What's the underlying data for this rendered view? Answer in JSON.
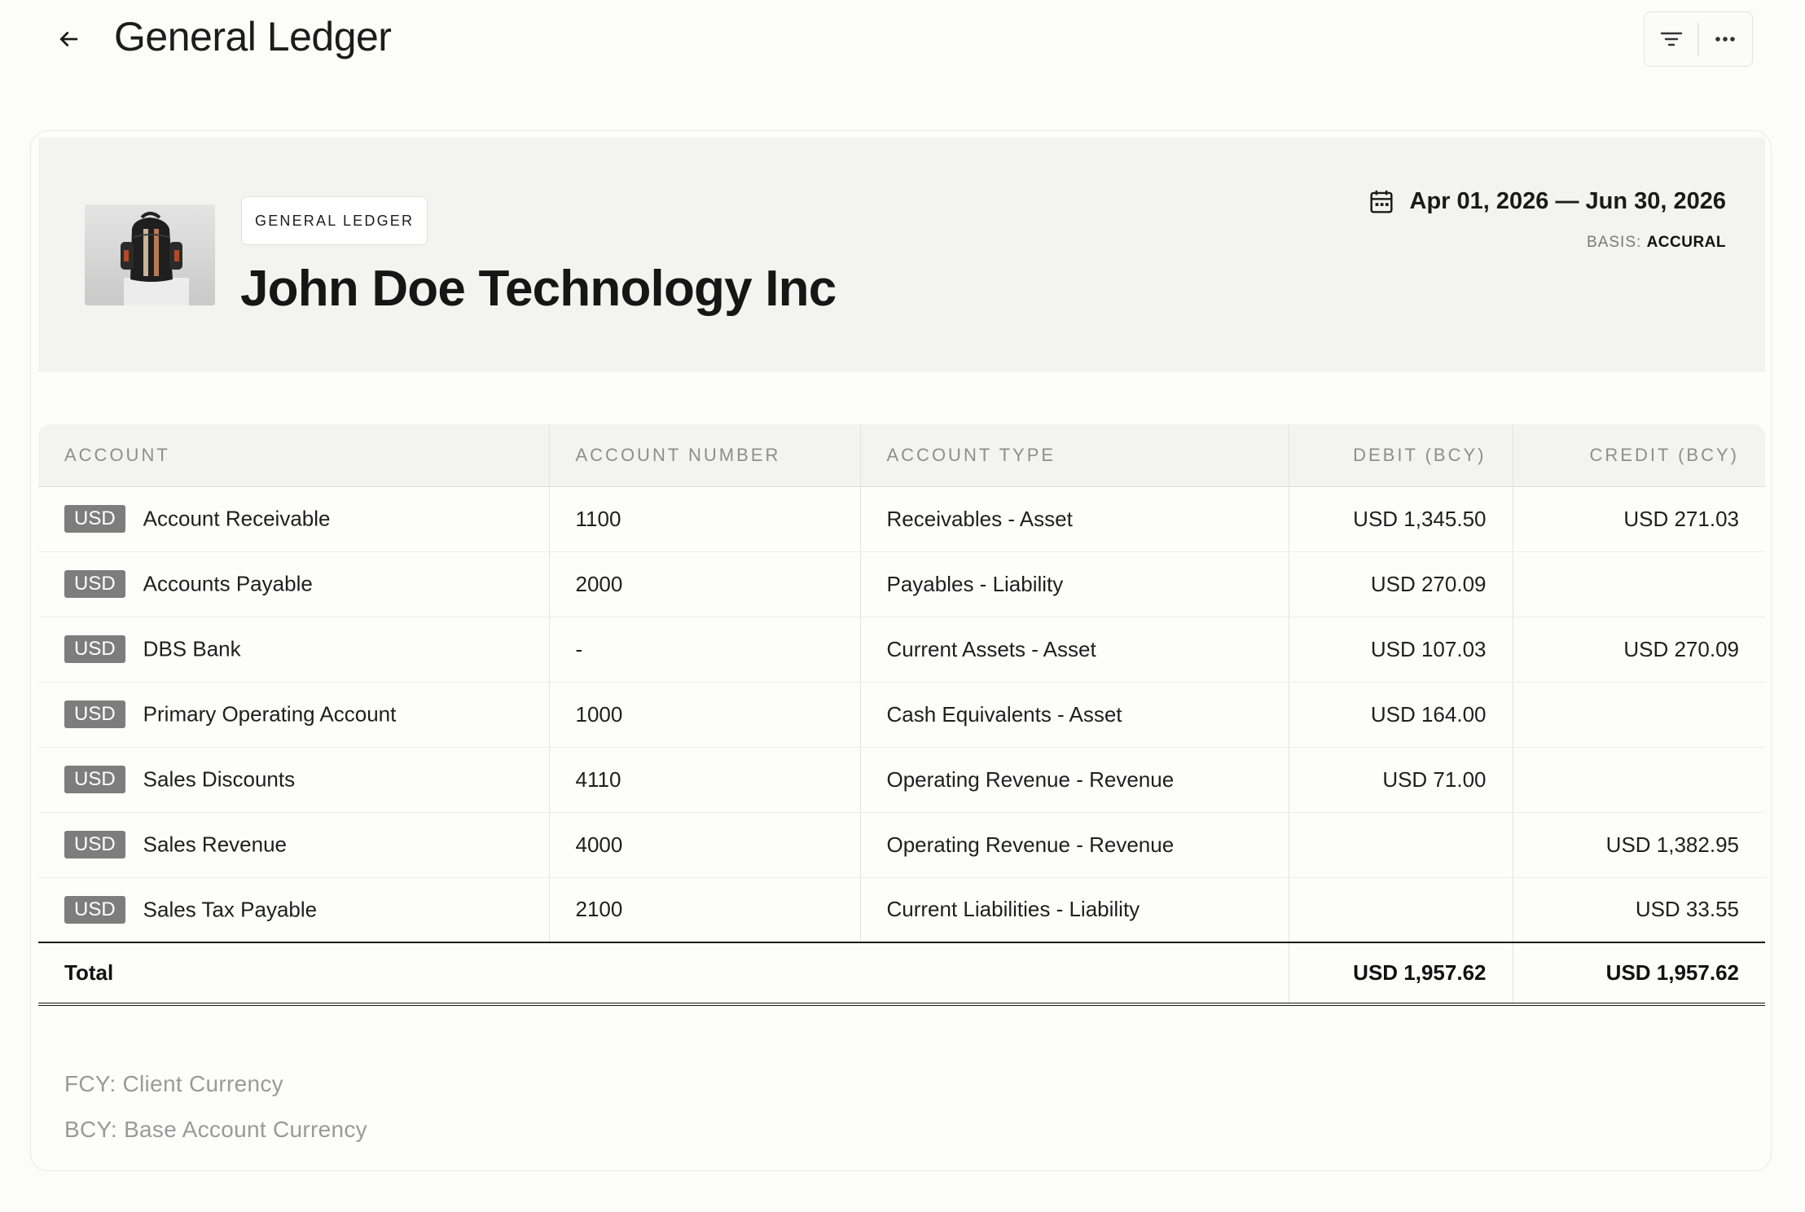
{
  "header": {
    "title": "General Ledger",
    "back_icon": "arrow-left-icon",
    "filter_icon": "filter-icon",
    "more_icon": "more-horizontal-icon"
  },
  "report": {
    "badge": "GENERAL LEDGER",
    "company": "John Doe Technology Inc",
    "logo_icon": "backpack-product-image",
    "date_range": "Apr 01, 2026 — Jun 30, 2026",
    "calendar_icon": "calendar-icon",
    "basis_label": "BASIS:",
    "basis_value": "ACCURAL"
  },
  "table": {
    "columns": [
      "ACCOUNT",
      "ACCOUNT NUMBER",
      "ACCOUNT TYPE",
      "DEBIT (BCY)",
      "CREDIT (BCY)"
    ],
    "rows": [
      {
        "currency": "USD",
        "account": "Account Receivable",
        "number": "1100",
        "type": "Receivables  -  Asset",
        "debit": "USD 1,345.50",
        "credit": "USD 271.03"
      },
      {
        "currency": "USD",
        "account": "Accounts Payable",
        "number": "2000",
        "type": "Payables  -  Liability",
        "debit": "USD 270.09",
        "credit": ""
      },
      {
        "currency": "USD",
        "account": "DBS Bank",
        "number": "-",
        "type": "Current Assets  -  Asset",
        "debit": "USD 107.03",
        "credit": "USD 270.09"
      },
      {
        "currency": "USD",
        "account": "Primary Operating Account",
        "number": "1000",
        "type": "Cash Equivalents  -  Asset",
        "debit": "USD 164.00",
        "credit": ""
      },
      {
        "currency": "USD",
        "account": "Sales Discounts",
        "number": "4110",
        "type": "Operating Revenue  -  Revenue",
        "debit": "USD 71.00",
        "credit": ""
      },
      {
        "currency": "USD",
        "account": "Sales Revenue",
        "number": "4000",
        "type": "Operating Revenue  -  Revenue",
        "debit": "",
        "credit": "USD 1,382.95"
      },
      {
        "currency": "USD",
        "account": "Sales Tax Payable",
        "number": "2100",
        "type": "Current Liabilities  -  Liability",
        "debit": "",
        "credit": "USD 33.55"
      }
    ],
    "total": {
      "label": "Total",
      "debit": "USD 1,957.62",
      "credit": "USD 1,957.62"
    }
  },
  "footnotes": [
    "FCY: Client Currency",
    "BCY: Base Account Currency"
  ],
  "colors": {
    "header_bg": "#f3f3f2",
    "badge_bg": "#7d7d7d",
    "muted_text": "#9a9a9a"
  }
}
